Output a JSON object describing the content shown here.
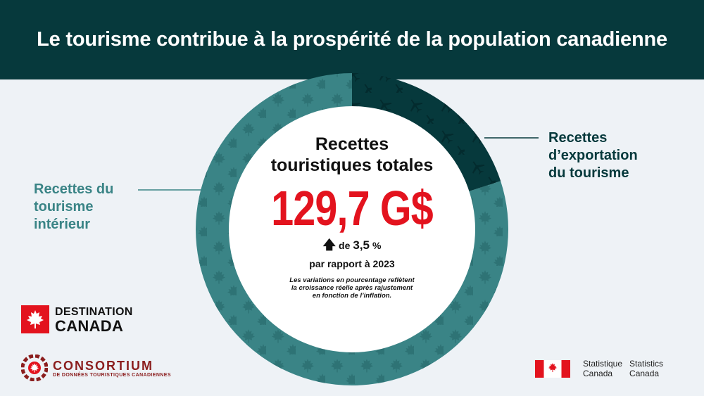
{
  "header": {
    "title": "Le tourisme contribue à la prospérité de la population canadienne"
  },
  "chart_data": {
    "type": "pie",
    "variant": "donut",
    "center": {
      "title_line1": "Recettes",
      "title_line2": "touristiques totales",
      "value": "129,7 G$",
      "change_prefix": "de",
      "change_value": "3,5",
      "change_unit": "%",
      "comparison": "par rapport à 2023",
      "note": "Les variations en pourcentage reflètent la croissance réelle après rajustement en fonction de l’inflation."
    },
    "slices": [
      {
        "label": "Recettes du tourisme intérieur",
        "share": 0.8,
        "color": "#3a8486",
        "pattern": "maple-leaf"
      },
      {
        "label": "Recettes d’exportation du tourisme",
        "share": 0.2,
        "color": "#06393c",
        "pattern": "airplane"
      }
    ],
    "labels": {
      "left": [
        "Recettes du",
        "tourisme",
        "intérieur"
      ],
      "right": [
        "Recettes",
        "d’exportation",
        "du tourisme"
      ]
    }
  },
  "logos": {
    "destination_canada": {
      "line1": "DESTINATION",
      "line2": "CANADA"
    },
    "consortium": {
      "line1": "CONSORTIUM",
      "line2": "DE DONNÉES TOURISTIQUES CANADIENNES"
    },
    "statcan": {
      "fr_line1": "Statistique",
      "fr_line2": "Canada",
      "en_line1": "Statistics",
      "en_line2": "Canada"
    }
  },
  "colors": {
    "header_bg": "#06393c",
    "accent_red": "#e3131e",
    "domestic": "#3a8486",
    "export": "#06393c"
  }
}
